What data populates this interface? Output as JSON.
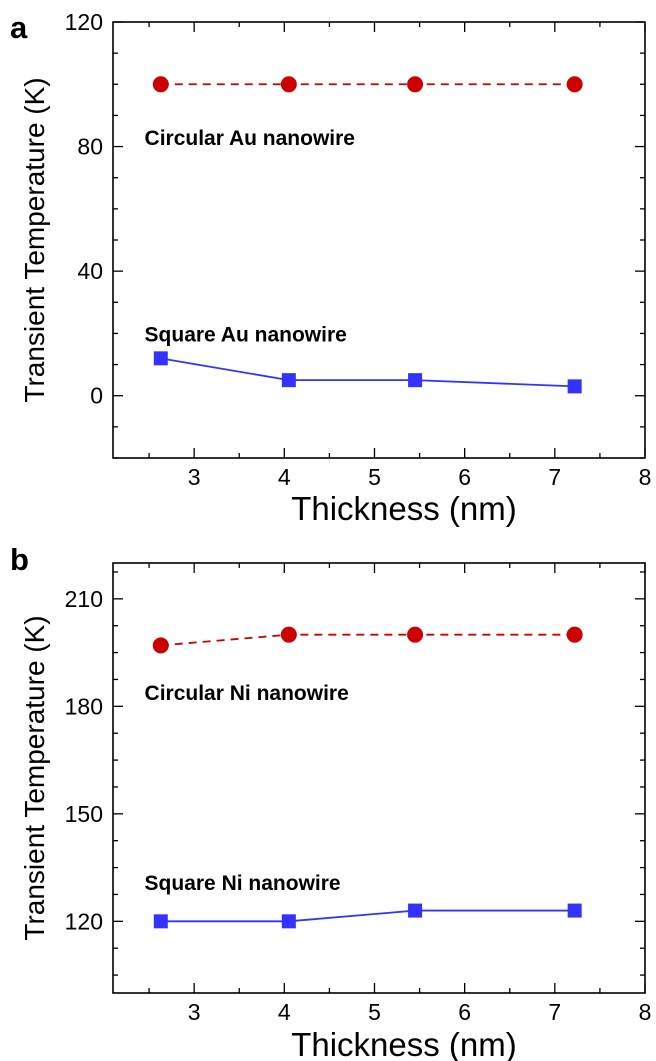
{
  "chart_data": [
    {
      "type": "line",
      "panel_label": "a",
      "title": "",
      "xlabel": "Thickness (nm)",
      "ylabel": "Transient Temperature (K)",
      "xlim": [
        2.1,
        8
      ],
      "ylim": [
        -20,
        120
      ],
      "xticks": [
        3,
        4,
        5,
        6,
        7,
        8
      ],
      "yticks": [
        0,
        40,
        80,
        120
      ],
      "grid": false,
      "legend": "none",
      "x": [
        2.63,
        4.05,
        5.45,
        7.22
      ],
      "series": [
        {
          "values": [
            100,
            100,
            100,
            100
          ],
          "color": "#cc0000",
          "line_style": "dashed",
          "marker": "circle"
        },
        {
          "values": [
            12,
            5,
            5,
            3
          ],
          "color": "#3333ff",
          "line_style": "solid",
          "marker": "square"
        }
      ],
      "annotations": [
        {
          "text": "Circular Au nanowire",
          "x": 2.45,
          "y": 83
        },
        {
          "text": "Square Au nanowire",
          "x": 2.45,
          "y": 20
        }
      ]
    },
    {
      "type": "line",
      "panel_label": "b",
      "title": "",
      "xlabel": "Thickness (nm)",
      "ylabel": "Transient Temperature (K)",
      "xlim": [
        2.1,
        8
      ],
      "ylim": [
        100,
        220
      ],
      "xticks": [
        3,
        4,
        5,
        6,
        7,
        8
      ],
      "yticks": [
        120,
        150,
        180,
        210
      ],
      "grid": false,
      "legend": "none",
      "x": [
        2.63,
        4.05,
        5.45,
        7.22
      ],
      "series": [
        {
          "values": [
            197,
            200,
            200,
            200
          ],
          "color": "#cc0000",
          "line_style": "dashed",
          "marker": "circle"
        },
        {
          "values": [
            120,
            120,
            123,
            123
          ],
          "color": "#3333ff",
          "line_style": "solid",
          "marker": "square"
        }
      ],
      "annotations": [
        {
          "text": "Circular Ni nanowire",
          "x": 2.45,
          "y": 184
        },
        {
          "text": "Square Ni nanowire",
          "x": 2.45,
          "y": 131
        }
      ]
    }
  ]
}
